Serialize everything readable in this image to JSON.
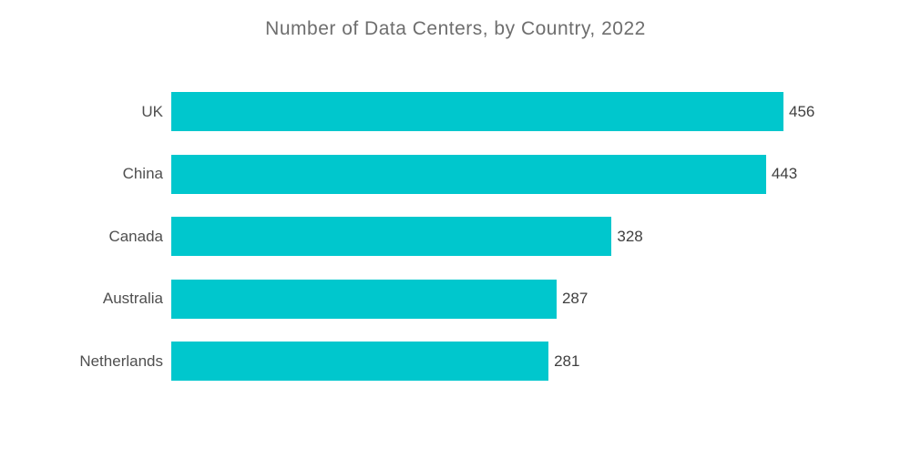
{
  "chart_data": {
    "type": "bar",
    "orientation": "horizontal",
    "title": "Number of  Data Centers, by Country, 2022",
    "categories": [
      "UK",
      "China",
      "Canada",
      "Australia",
      "Netherlands"
    ],
    "values": [
      456,
      443,
      328,
      287,
      281
    ],
    "xlabel": "",
    "ylabel": "",
    "xlim": [
      0,
      456
    ],
    "grid": false,
    "legend": false,
    "data_labels": true,
    "bar_color": "#00c7cd",
    "title_color": "#6e6e6e",
    "category_label_color": "#4f4f4f",
    "value_label_color": "#3f3f3f",
    "background_color": "#ffffff"
  }
}
